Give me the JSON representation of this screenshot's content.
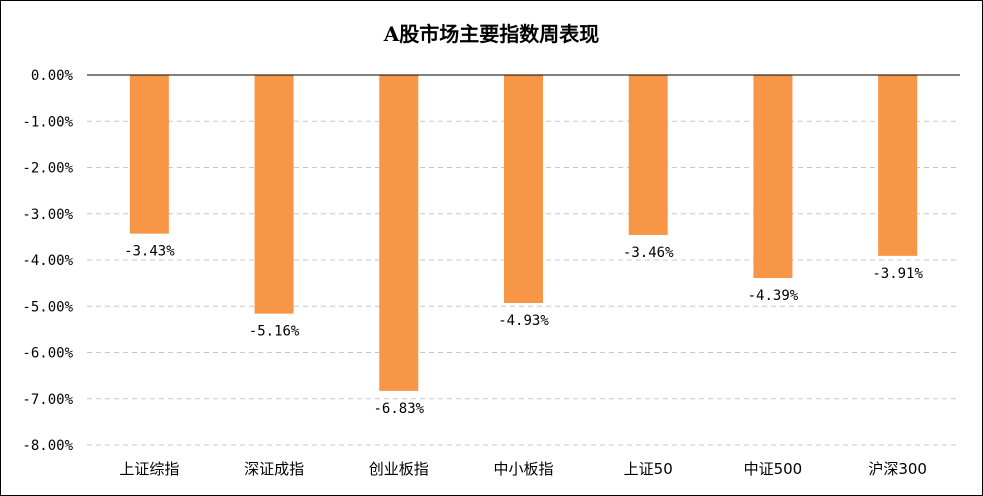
{
  "chart_data": {
    "type": "bar",
    "title": "A股市场主要指数周表现",
    "categories": [
      "上证综指",
      "深证成指",
      "创业板指",
      "中小板指",
      "上证50",
      "中证500",
      "沪深300"
    ],
    "values": [
      -3.43,
      -5.16,
      -6.83,
      -4.93,
      -3.46,
      -4.39,
      -3.91
    ],
    "data_labels": [
      "-3.43%",
      "-5.16%",
      "-6.83%",
      "-4.93%",
      "-3.46%",
      "-4.39%",
      "-3.91%"
    ],
    "ylim": [
      -8,
      0
    ],
    "yticks": [
      0,
      -1,
      -2,
      -3,
      -4,
      -5,
      -6,
      -7,
      -8
    ],
    "ytick_labels": [
      "0.00%",
      "-1.00%",
      "-2.00%",
      "-3.00%",
      "-4.00%",
      "-5.00%",
      "-6.00%",
      "-7.00%",
      "-8.00%"
    ],
    "grid": true,
    "bar_color": "#F79646",
    "xlabel": "",
    "ylabel": ""
  }
}
